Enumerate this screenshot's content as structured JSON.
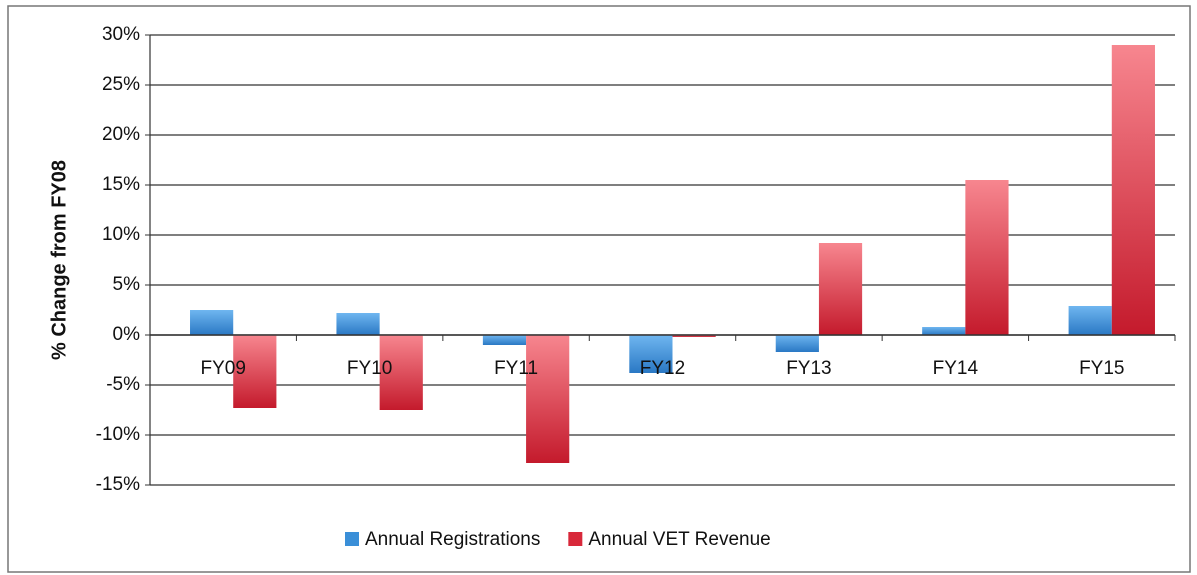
{
  "chart_data": {
    "type": "bar",
    "y_axis_label": "% Change from FY08",
    "categories": [
      "FY09",
      "FY10",
      "FY11",
      "FY12",
      "FY13",
      "FY14",
      "FY15"
    ],
    "series": [
      {
        "name": "Annual Registrations",
        "color": "#3a8fd8",
        "values": [
          2.5,
          2.2,
          -1.0,
          -3.8,
          -1.7,
          0.8,
          2.9
        ]
      },
      {
        "name": "Annual VET Revenue",
        "color": "#d8283a",
        "values": [
          -7.3,
          -7.5,
          -12.8,
          -0.2,
          9.2,
          15.5,
          29.0
        ]
      }
    ],
    "ylim": [
      -15,
      30
    ],
    "yticks": [
      {
        "value": -15,
        "label": "-15%"
      },
      {
        "value": -10,
        "label": "-10%"
      },
      {
        "value": -5,
        "label": "-5%"
      },
      {
        "value": 0,
        "label": "0%"
      },
      {
        "value": 5,
        "label": "5%"
      },
      {
        "value": 10,
        "label": "10%"
      },
      {
        "value": 15,
        "label": "15%"
      },
      {
        "value": 20,
        "label": "20%"
      },
      {
        "value": 25,
        "label": "25%"
      },
      {
        "value": 30,
        "label": "30%"
      }
    ],
    "grid": true,
    "legend": "bottom"
  }
}
